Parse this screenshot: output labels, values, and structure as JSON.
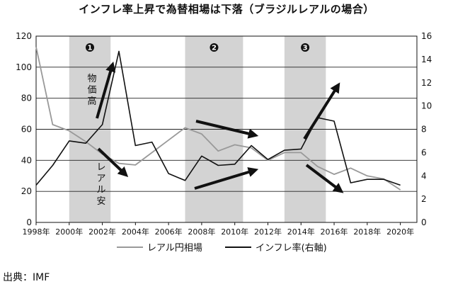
{
  "chart_data": {
    "type": "line",
    "title": "インフレ率上昇で為替相場は下落（ブラジルレアルの場合）",
    "source": "出典：IMF",
    "y_left": {
      "ticks": [
        0,
        20,
        40,
        60,
        80,
        100,
        120
      ],
      "range": [
        0,
        120
      ]
    },
    "y_right": {
      "ticks": [
        0,
        2,
        4,
        6,
        8,
        10,
        12,
        14,
        16
      ],
      "range": [
        0,
        16
      ]
    },
    "x_range": [
      1998,
      2021
    ],
    "x_ticks": [
      1998,
      2000,
      2002,
      2004,
      2006,
      2008,
      2010,
      2012,
      2014,
      2016,
      2018,
      2020
    ],
    "x_tick_labels": [
      "1998年",
      "2000年",
      "2002年",
      "2004年",
      "2006年",
      "2008年",
      "2010年",
      "2012年",
      "2014年",
      "2016年",
      "2018年",
      "2020年"
    ],
    "grid": "horizontal",
    "series": [
      {
        "name": "レアル円相場",
        "axis": "left",
        "color": "#999999",
        "x": [
          1998,
          1999,
          2000,
          2001,
          2002,
          2003,
          2004,
          2005,
          2006,
          2007,
          2008,
          2009,
          2010,
          2011,
          2012,
          2013,
          2014,
          2015,
          2016,
          2017,
          2018,
          2019,
          2020
        ],
        "values": [
          113,
          63,
          59,
          52,
          44,
          38,
          37,
          45,
          53,
          61,
          57,
          46,
          50,
          48,
          40,
          45,
          45,
          36,
          31,
          35,
          30,
          28,
          21
        ]
      },
      {
        "name": "インフレ率(右軸)",
        "axis": "right",
        "color": "#111111",
        "x": [
          1998,
          1999,
          2000,
          2001,
          2002,
          2003,
          2004,
          2005,
          2006,
          2007,
          2008,
          2009,
          2010,
          2011,
          2012,
          2013,
          2014,
          2015,
          2016,
          2017,
          2018,
          2019,
          2020
        ],
        "values": [
          3.2,
          4.9,
          7.0,
          6.8,
          8.4,
          14.7,
          6.6,
          6.9,
          4.2,
          3.6,
          5.7,
          4.9,
          5.0,
          6.6,
          5.4,
          6.2,
          6.3,
          9.0,
          8.7,
          3.4,
          3.7,
          3.7,
          3.2
        ]
      }
    ],
    "shaded_periods": [
      {
        "label": "❶",
        "from": 2000,
        "to": 2002.5
      },
      {
        "label": "❷",
        "from": 2007,
        "to": 2010.5
      },
      {
        "label": "❸",
        "from": 2013,
        "to": 2015.5
      }
    ],
    "annotations": [
      "物価高",
      "レアル安"
    ],
    "legend_position": "bottom"
  }
}
